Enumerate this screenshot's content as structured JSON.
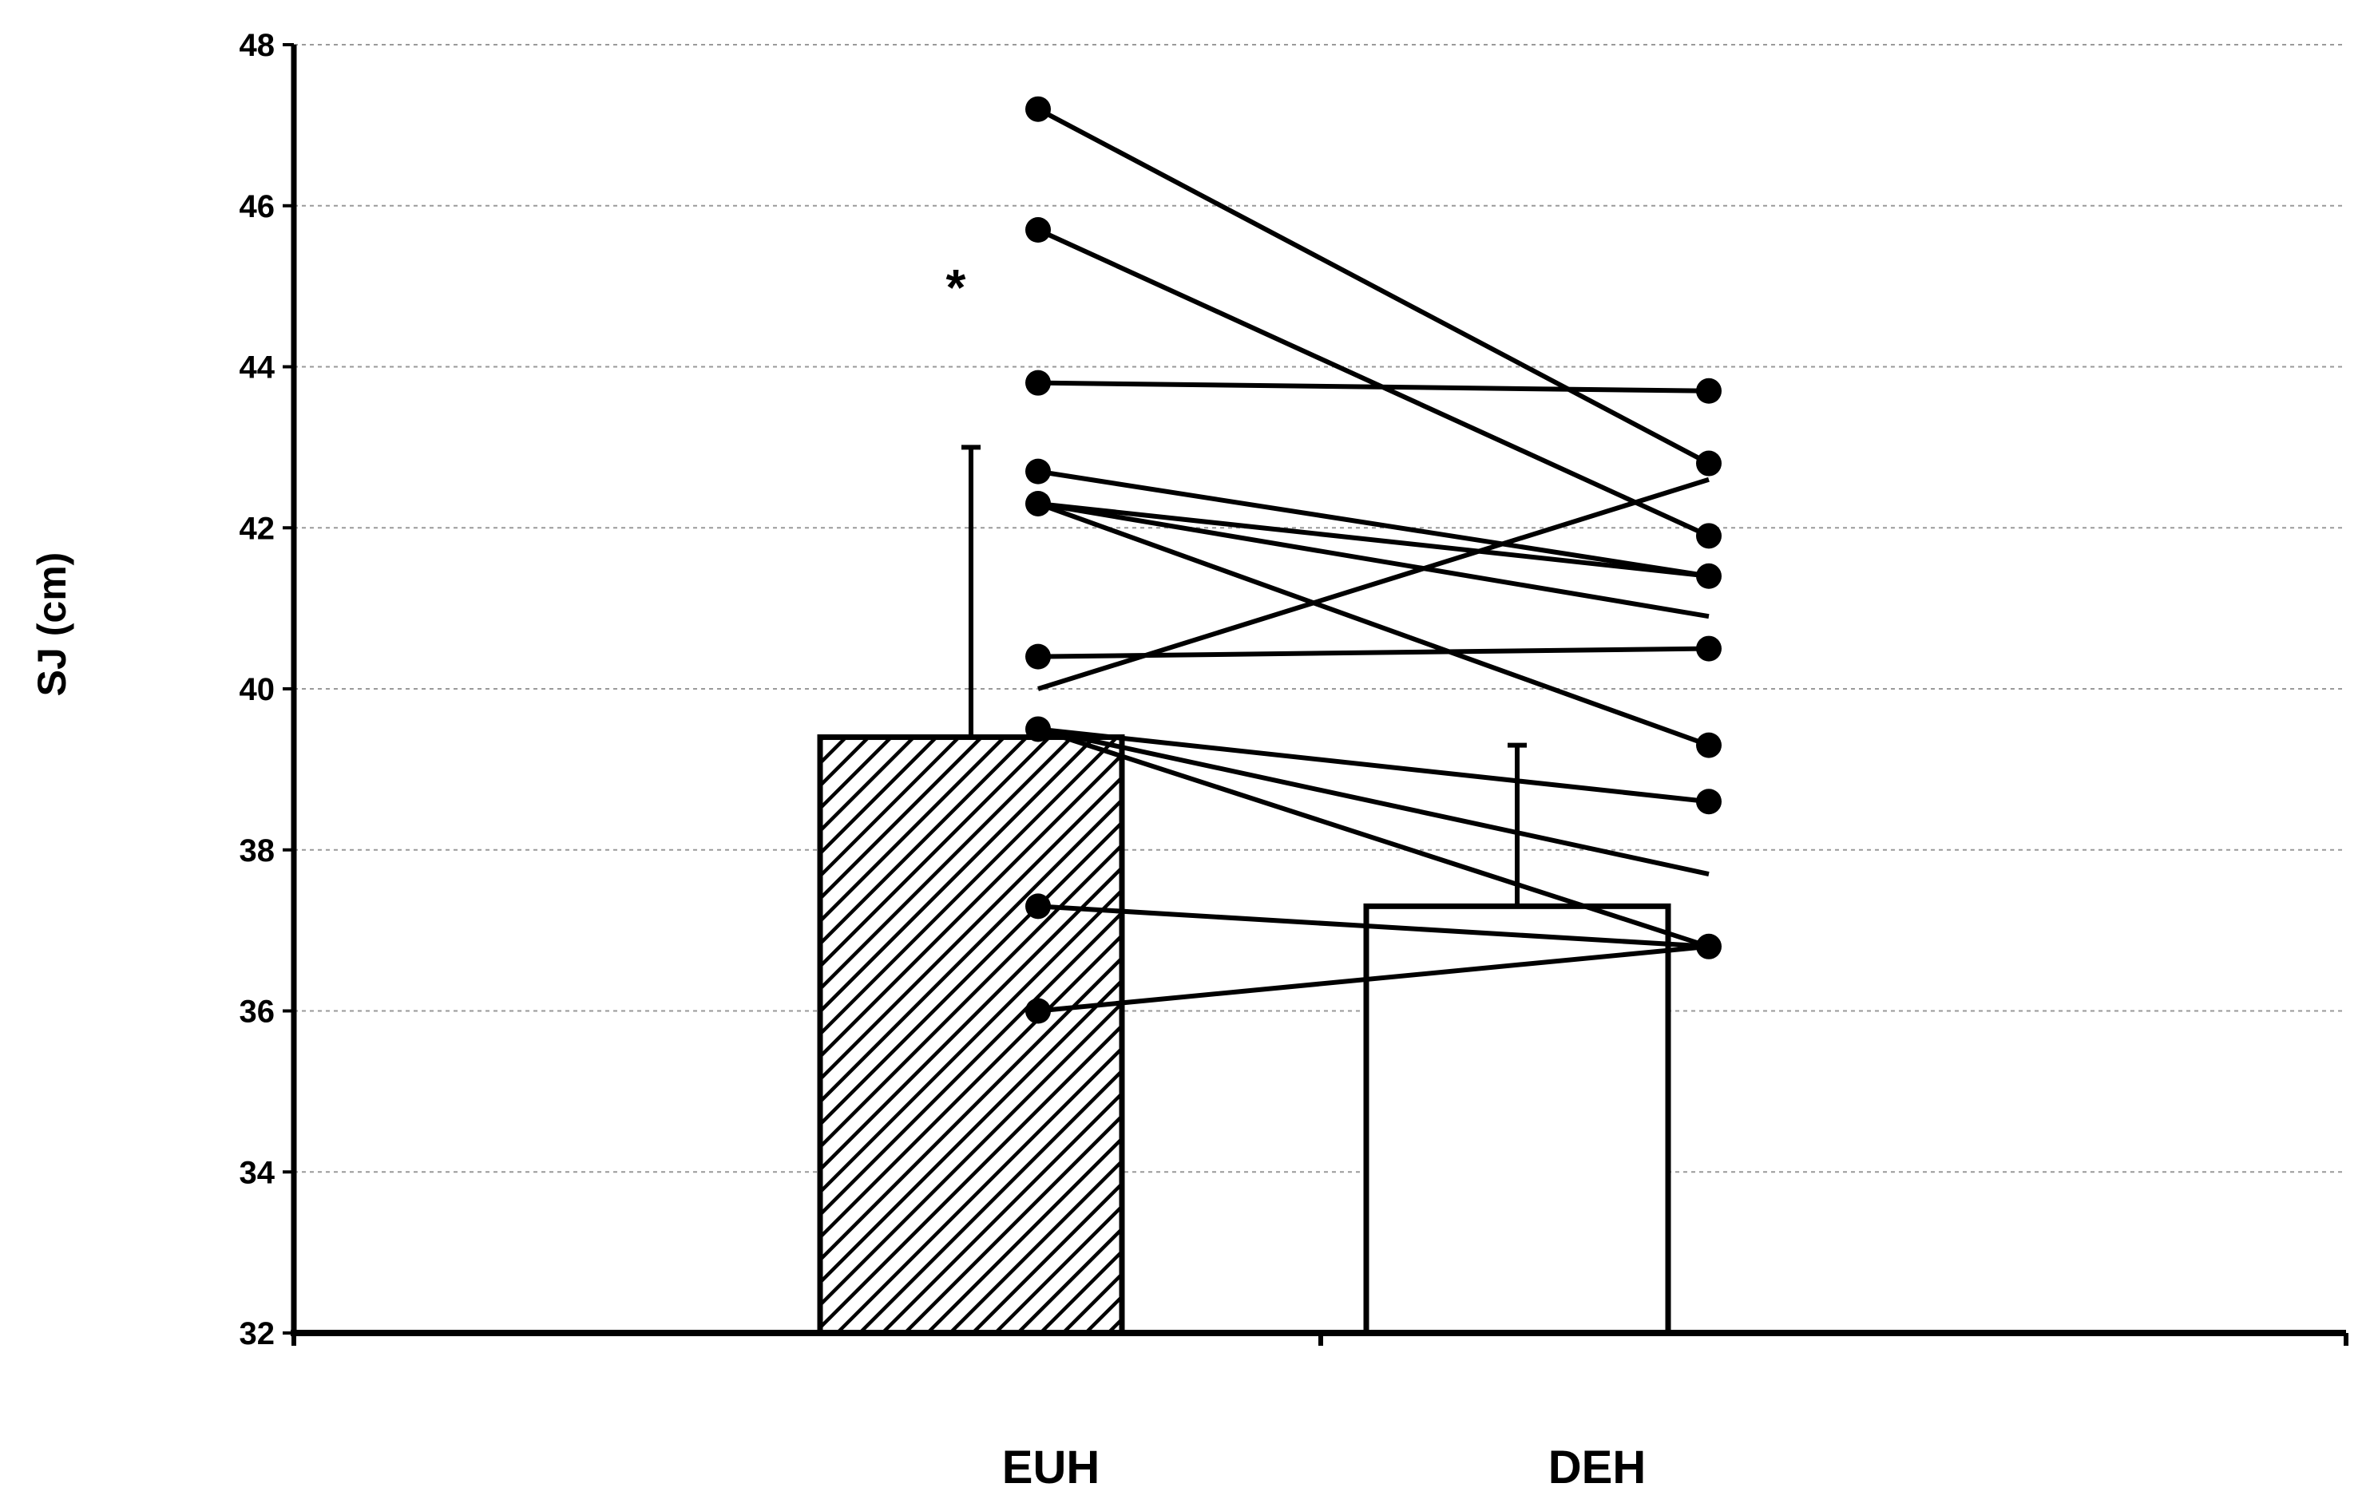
{
  "chart_data": {
    "type": "bar",
    "categories": [
      "EUH",
      "DEH"
    ],
    "values": [
      39.4,
      37.3
    ],
    "error_upper": [
      43.0,
      39.3
    ],
    "ylabel": "SJ (cm)",
    "xlabel": "",
    "ylim": [
      32,
      48
    ],
    "yticks": [
      "32",
      "34",
      "36",
      "38",
      "40",
      "42",
      "44",
      "46",
      "48"
    ],
    "grid": "horizontal dashed",
    "bar_fill": [
      "diagonal hatch",
      "white"
    ],
    "annotation": "*",
    "paired_lines": [
      {
        "from": 47.2,
        "to": 42.8
      },
      {
        "from": 45.7,
        "to": 41.9
      },
      {
        "from": 43.8,
        "to": 43.7
      },
      {
        "from": 42.7,
        "to": 41.4
      },
      {
        "from": 42.3,
        "to": 41.4
      },
      {
        "from": 42.3,
        "to": 39.3
      },
      {
        "from": 42.3,
        "to": 40.9
      },
      {
        "from": 40.4,
        "to": 40.5
      },
      {
        "from": 40.0,
        "to": 42.6
      },
      {
        "from": 39.5,
        "to": 38.6
      },
      {
        "from": 39.5,
        "to": 37.7
      },
      {
        "from": 39.5,
        "to": 36.8
      },
      {
        "from": 37.3,
        "to": 36.8
      },
      {
        "from": 36.0,
        "to": 36.8
      }
    ],
    "end_markers": {
      "EUH": [
        47.2,
        45.7,
        43.8,
        42.7,
        42.3,
        40.4,
        39.5,
        37.3,
        36.0
      ],
      "DEH": [
        43.7,
        42.8,
        41.9,
        41.4,
        40.5,
        39.3,
        38.6,
        36.8
      ]
    },
    "colors": {
      "ink": "#000000",
      "grid": "#9a9a9a",
      "background": "#ffffff"
    }
  }
}
